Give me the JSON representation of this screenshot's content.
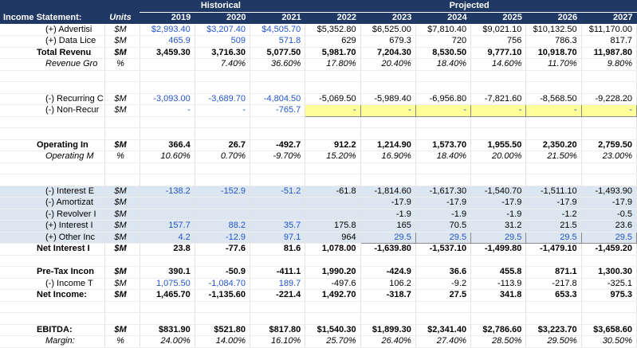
{
  "header": {
    "title": "Income Statement:",
    "units_label": "Units",
    "group_historical": "Historical",
    "group_projected": "Projected",
    "years_historical": [
      "2019",
      "2020",
      "2021"
    ],
    "years_projected": [
      "2022",
      "2023",
      "2024",
      "2025",
      "2026",
      "2027"
    ]
  },
  "colors": {
    "header_bg": "#1F3864",
    "band_bg": "#DCE6F1",
    "input_bg": "#FFFF99",
    "hist_text": "#2255CC"
  },
  "rows": [
    {
      "name": "advertising",
      "label": "(+) Advertisi",
      "units": "$M",
      "indent": 1,
      "blueCols": [
        0,
        1,
        2
      ],
      "values": [
        "$2,993.40",
        "$3,207.40",
        "$4,505.70",
        "$5,352.80",
        "$6,525.00",
        "$7,810.40",
        "$9,021.10",
        "$10,132.50",
        "$11,170.00"
      ]
    },
    {
      "name": "data-licensing",
      "label": "(+) Data Lice",
      "units": "$M",
      "indent": 1,
      "blueCols": [
        0,
        1,
        2
      ],
      "values": [
        "465.9",
        "509",
        "571.8",
        "629",
        "679.3",
        "720",
        "756",
        "786.3",
        "817.7"
      ]
    },
    {
      "name": "total-revenue",
      "label": "Total Revenu",
      "units": "$M",
      "bold": true,
      "topBorder": true,
      "values": [
        "3,459.30",
        "3,716.30",
        "5,077.50",
        "5,981.70",
        "7,204.30",
        "8,530.50",
        "9,777.10",
        "10,918.70",
        "11,987.80"
      ]
    },
    {
      "name": "revenue-growth",
      "label": "Revenue Gro",
      "units": "%",
      "italic": true,
      "indent": 1,
      "values": [
        "",
        "7.40%",
        "36.60%",
        "17.80%",
        "20.40%",
        "18.40%",
        "14.60%",
        "11.70%",
        "9.80%"
      ]
    },
    {
      "blank": true
    },
    {
      "blank": true
    },
    {
      "name": "recurring-costs",
      "label": "(-) Recurring C",
      "units": "$M",
      "indent": 1,
      "blueCols": [
        0,
        1,
        2
      ],
      "values": [
        "-3,093.00",
        "-3,689.70",
        "-4,804.50",
        "-5,069.50",
        "-5,989.40",
        "-6,956.80",
        "-7,821.60",
        "-8,568.50",
        "-9,228.20"
      ]
    },
    {
      "name": "non-recurring-costs",
      "label": "(-) Non-Recur",
      "units": "$M",
      "indent": 1,
      "blueCols": [
        0,
        1,
        2,
        3,
        4,
        5,
        6,
        7,
        8
      ],
      "yellow": [
        3,
        4,
        5,
        6,
        7,
        8
      ],
      "values": [
        "-",
        "-",
        "-765.7",
        "-",
        "-",
        "-",
        "-",
        "-",
        "-"
      ]
    },
    {
      "blank": true
    },
    {
      "blank": true
    },
    {
      "name": "operating-income",
      "label": "Operating In",
      "units": "$M",
      "bold": true,
      "topBorder": true,
      "values": [
        "366.4",
        "26.7",
        "-492.7",
        "912.2",
        "1,214.90",
        "1,573.70",
        "1,955.50",
        "2,350.20",
        "2,759.50"
      ]
    },
    {
      "name": "operating-margin",
      "label": "Operating M",
      "units": "%",
      "italic": true,
      "indent": 1,
      "values": [
        "10.60%",
        "0.70%",
        "-9.70%",
        "15.20%",
        "16.90%",
        "18.40%",
        "20.00%",
        "21.50%",
        "23.00%"
      ]
    },
    {
      "blank": true
    },
    {
      "blank": true
    },
    {
      "name": "interest-expense",
      "label": "(-) Interest E",
      "units": "$M",
      "indent": 1,
      "band": true,
      "blueCols": [
        0,
        1,
        2
      ],
      "values": [
        "-138.2",
        "-152.9",
        "-51.2",
        "-61.8",
        "-1,814.60",
        "-1,617.30",
        "-1,540.70",
        "-1,511.10",
        "-1,493.90"
      ]
    },
    {
      "name": "amortization",
      "label": "(-) Amortizat",
      "units": "$M",
      "indent": 1,
      "band": true,
      "values": [
        "",
        "",
        "",
        "",
        "-17.9",
        "-17.9",
        "-17.9",
        "-17.9",
        "-17.9"
      ]
    },
    {
      "name": "revolver",
      "label": "(-) Revolver I",
      "units": "$M",
      "indent": 1,
      "band": true,
      "values": [
        "",
        "",
        "",
        "",
        "-1.9",
        "-1.9",
        "-1.9",
        "-1.2",
        "-0.5"
      ]
    },
    {
      "name": "interest-income",
      "label": "(+) Interest I",
      "units": "$M",
      "indent": 1,
      "band": true,
      "blueCols": [
        0,
        1,
        2
      ],
      "values": [
        "157.7",
        "88.2",
        "35.7",
        "175.8",
        "165",
        "70.5",
        "31.2",
        "21.5",
        "23.6"
      ]
    },
    {
      "name": "other-income",
      "label": "(+) Other Inc",
      "units": "$M",
      "indent": 1,
      "band": true,
      "blueCols": [
        0,
        1,
        2,
        4,
        5,
        6,
        7,
        8
      ],
      "yellow": [
        4,
        5,
        6,
        7,
        8
      ],
      "values": [
        "4.2",
        "-12.9",
        "97.1",
        "964",
        "29.5",
        "29.5",
        "29.5",
        "29.5",
        "29.5"
      ]
    },
    {
      "name": "net-interest",
      "label": "Net Interest I",
      "units": "$M",
      "bold": true,
      "topBorder": true,
      "values": [
        "23.8",
        "-77.6",
        "81.6",
        "1,078.00",
        "-1,639.80",
        "-1,537.10",
        "-1,499.80",
        "-1,479.10",
        "-1,459.20"
      ]
    },
    {
      "blank": true
    },
    {
      "name": "pre-tax-income",
      "label": "Pre-Tax Incon",
      "units": "$M",
      "bold": true,
      "topBorder": true,
      "values": [
        "390.1",
        "-50.9",
        "-411.1",
        "1,990.20",
        "-424.9",
        "36.6",
        "455.8",
        "871.1",
        "1,300.30"
      ]
    },
    {
      "name": "income-taxes",
      "label": "(-) Income T",
      "units": "$M",
      "indent": 1,
      "blueCols": [
        0,
        1,
        2
      ],
      "values": [
        "1,075.50",
        "-1,084.70",
        "189.7",
        "-497.6",
        "106.2",
        "-9.2",
        "-113.9",
        "-217.8",
        "-325.1"
      ]
    },
    {
      "name": "net-income",
      "label": "Net Income:",
      "units": "$M",
      "bold": true,
      "topBorder": true,
      "values": [
        "1,465.70",
        "-1,135.60",
        "-221.4",
        "1,492.70",
        "-318.7",
        "27.5",
        "341.8",
        "653.3",
        "975.3"
      ]
    },
    {
      "blank": true
    },
    {
      "blank": true
    },
    {
      "name": "ebitda",
      "label": "EBITDA:",
      "units": "$M",
      "bold": true,
      "topBorder": true,
      "values": [
        "$831.90",
        "$521.80",
        "$817.80",
        "$1,540.30",
        "$1,899.30",
        "$2,341.40",
        "$2,786.60",
        "$3,223.70",
        "$3,658.60"
      ]
    },
    {
      "name": "ebitda-margin",
      "label": "Margin:",
      "units": "%",
      "italic": true,
      "indent": 1,
      "values": [
        "24.00%",
        "14.00%",
        "16.10%",
        "25.70%",
        "26.40%",
        "27.40%",
        "28.50%",
        "29.50%",
        "30.50%"
      ]
    }
  ]
}
